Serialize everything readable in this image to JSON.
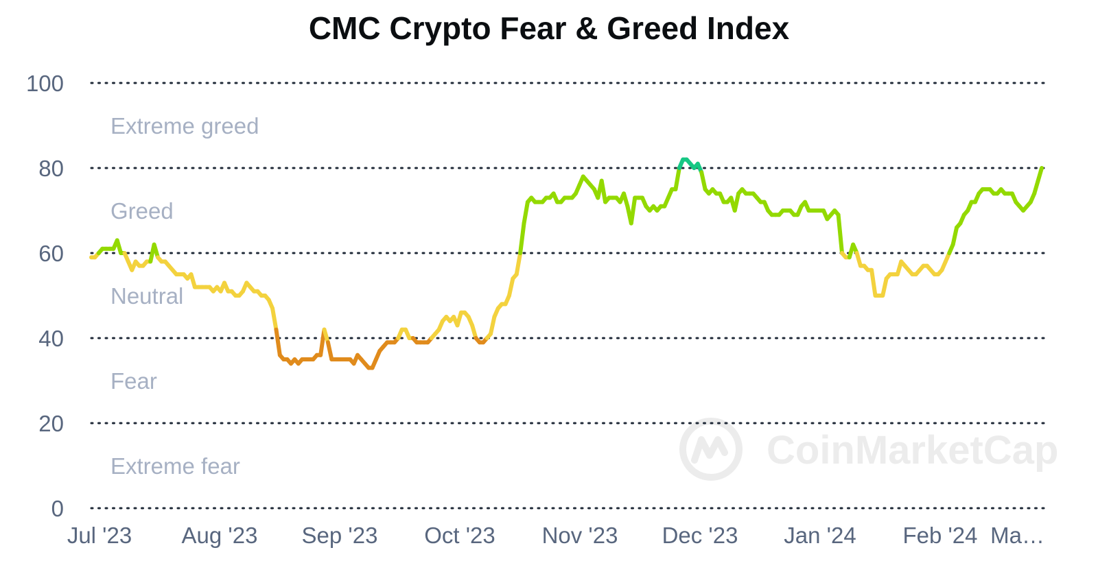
{
  "chart_data": {
    "type": "line",
    "title": "CMC Crypto Fear & Greed Index",
    "xlabel": "",
    "ylabel": "",
    "ylim": [
      0,
      100
    ],
    "y_ticks": [
      "100",
      "80",
      "60",
      "40",
      "20",
      "0"
    ],
    "x_ticks": [
      "Jul '23",
      "Aug '23",
      "Sep '23",
      "Oct '23",
      "Nov '23",
      "Dec '23",
      "Jan '24",
      "Feb '24",
      "Ma…"
    ],
    "band_labels": [
      "Extreme greed",
      "Greed",
      "Neutral",
      "Fear",
      "Extreme fear"
    ],
    "grid": "horizontal dotted",
    "legend": "none",
    "watermark": "CoinMarketCap",
    "x_start": "2023-06-30",
    "x_end": "2024-03-05",
    "series": [
      {
        "values": [
          59,
          59,
          60,
          61,
          61,
          61,
          61,
          63,
          60,
          60,
          58,
          56,
          58,
          57,
          57,
          58,
          58,
          62,
          59,
          58,
          58,
          57,
          56,
          55,
          55,
          55,
          54,
          55,
          52,
          52,
          52,
          52,
          52,
          51,
          52,
          51,
          53,
          51,
          51,
          50,
          50,
          51,
          53,
          52,
          51,
          51,
          50,
          50,
          49,
          47,
          42,
          36,
          35,
          35,
          34,
          35,
          34,
          35,
          35,
          35,
          35,
          36,
          36,
          42,
          39,
          35,
          35,
          35,
          35,
          35,
          35,
          34,
          36,
          35,
          34,
          33,
          33,
          35,
          37,
          38,
          39,
          39,
          39,
          40,
          42,
          42,
          40,
          40,
          39,
          39,
          39,
          39,
          40,
          41,
          42,
          44,
          45,
          44,
          45,
          43,
          46,
          46,
          45,
          43,
          40,
          39,
          39,
          40,
          41,
          45,
          47,
          48,
          48,
          50,
          54,
          55,
          60,
          67,
          72,
          73,
          72,
          72,
          72,
          73,
          73,
          74,
          72,
          72,
          73,
          73,
          73,
          74,
          76,
          78,
          77,
          76,
          75,
          73,
          77,
          72,
          73,
          73,
          73,
          72,
          74,
          71,
          67,
          73,
          73,
          73,
          71,
          70,
          71,
          70,
          71,
          71,
          73,
          75,
          75,
          80,
          82,
          82,
          81,
          80,
          81,
          79,
          75,
          74,
          75,
          74,
          74,
          72,
          72,
          73,
          70,
          74,
          75,
          74,
          74,
          74,
          73,
          72,
          72,
          70,
          69,
          69,
          69,
          70,
          70,
          70,
          69,
          69,
          71,
          72,
          70,
          70,
          70,
          70,
          70,
          68,
          69,
          70,
          69,
          60,
          59,
          59,
          62,
          60,
          57,
          57,
          56,
          56,
          50,
          50,
          50,
          54,
          55,
          55,
          55,
          58,
          57,
          56,
          55,
          55,
          56,
          57,
          57,
          56,
          55,
          55,
          56,
          58,
          60,
          62,
          66,
          67,
          69,
          70,
          72,
          72,
          74,
          75,
          75,
          75,
          74,
          74,
          75,
          74,
          74,
          74,
          72,
          71,
          70,
          71,
          72,
          74,
          77,
          80
        ]
      }
    ],
    "zone_colors": {
      "extreme_fear": "#ea3943",
      "fear": "#e08b1c",
      "neutral": "#f3d23e",
      "greed": "#93d900",
      "extreme_greed": "#16c784"
    },
    "grid_color": "#1f2937",
    "tick_color": "#58667e",
    "band_label_color": "#a6b0c3"
  }
}
